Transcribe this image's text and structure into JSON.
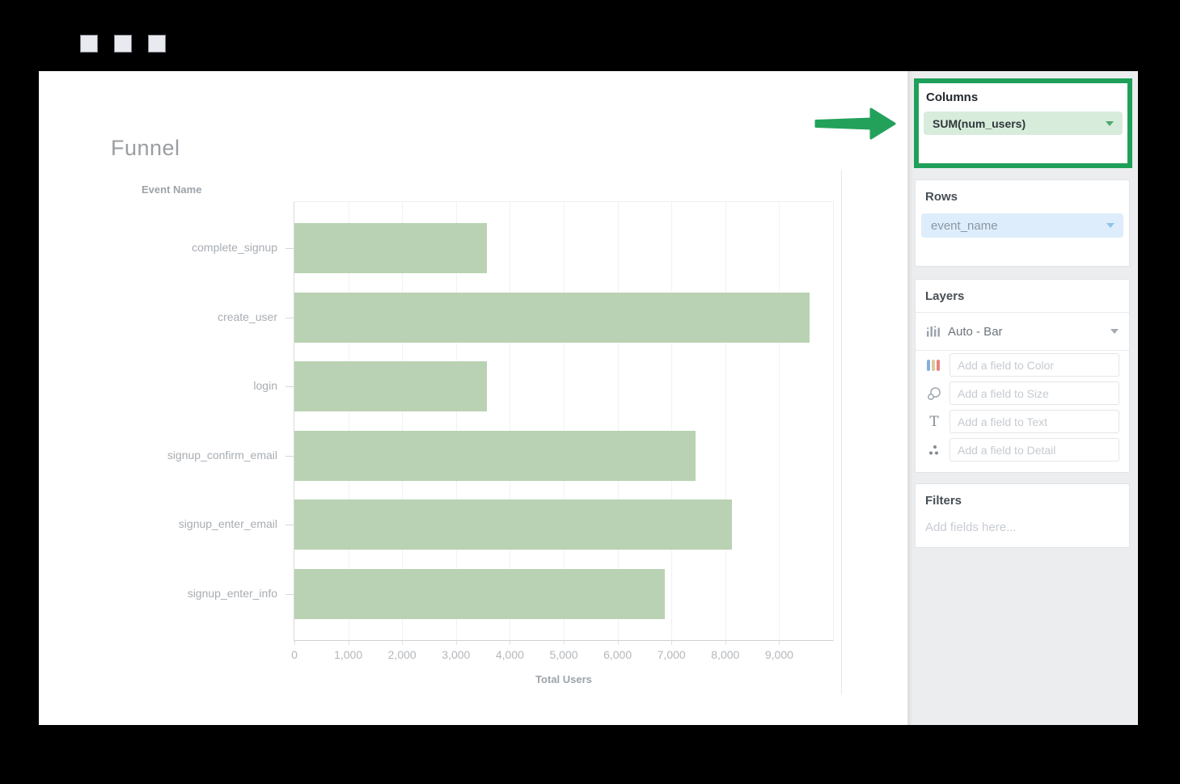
{
  "window": {
    "controls": [
      "window-square-icon",
      "window-square-icon",
      "window-square-icon"
    ]
  },
  "page": {
    "title": "Funnel"
  },
  "chart_data": {
    "type": "bar",
    "orientation": "horizontal",
    "title": "Funnel",
    "ylabel": "Event Name",
    "xlabel": "Total Users",
    "categories": [
      "complete_signup",
      "create_user",
      "login",
      "signup_confirm_email",
      "signup_enter_email",
      "signup_enter_info"
    ],
    "values": [
      3570,
      9560,
      3570,
      7440,
      8120,
      6880
    ],
    "xlim": [
      0,
      10000
    ],
    "x_ticks": [
      "0",
      "1,000",
      "2,000",
      "3,000",
      "4,000",
      "5,000",
      "6,000",
      "7,000",
      "8,000",
      "9,000"
    ],
    "grid": true,
    "legend": false,
    "bar_color": "#b9d2b3"
  },
  "panel": {
    "columns": {
      "label": "Columns",
      "pill": "SUM(num_users)",
      "highlighted": true
    },
    "rows": {
      "label": "Rows",
      "pill": "event_name"
    },
    "layers": {
      "label": "Layers",
      "viz_selector": "Auto - Bar",
      "fields": [
        {
          "icon": "color-icon",
          "placeholder": "Add a field to Color"
        },
        {
          "icon": "size-icon",
          "placeholder": "Add a field to Size"
        },
        {
          "icon": "text-icon",
          "placeholder": "Add a field to Text"
        },
        {
          "icon": "detail-icon",
          "placeholder": "Add a field to Detail"
        }
      ]
    },
    "filters": {
      "label": "Filters",
      "placeholder": "Add fields here..."
    }
  },
  "colors": {
    "accent_green": "#1fa05a",
    "bar_green": "#b9d2b3",
    "pill_green_bg": "#d8ecdb",
    "pill_blue_bg": "#ddedfb",
    "panel_bg": "#ecedef",
    "frame": "#000000"
  }
}
